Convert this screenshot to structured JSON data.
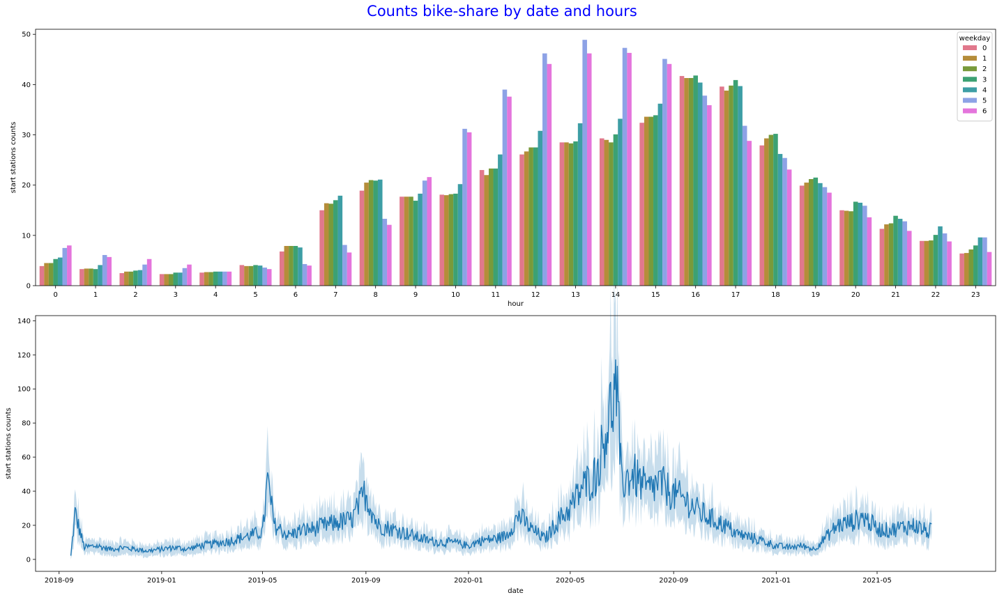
{
  "suptitle": "Counts bike-share by date and hours",
  "chart_data": [
    {
      "type": "bar",
      "title": "",
      "xlabel": "hour",
      "ylabel": "start stations counts",
      "ylim": [
        0,
        51
      ],
      "yticks": [
        0,
        10,
        20,
        30,
        40,
        50
      ],
      "grid": false,
      "legend": {
        "title": "weekday",
        "placement": "top-right"
      },
      "categories": [
        "0",
        "1",
        "2",
        "3",
        "4",
        "5",
        "6",
        "7",
        "8",
        "9",
        "10",
        "11",
        "12",
        "13",
        "14",
        "15",
        "16",
        "17",
        "18",
        "19",
        "20",
        "21",
        "22",
        "23"
      ],
      "series": [
        {
          "name": "0",
          "color": "#e1788c",
          "values": [
            3.9,
            3.3,
            2.5,
            2.3,
            2.6,
            4.1,
            6.8,
            15.0,
            18.9,
            17.7,
            18.1,
            23.0,
            26.1,
            28.5,
            29.3,
            32.4,
            41.7,
            39.6,
            27.9,
            19.9,
            15.0,
            11.3,
            8.9,
            6.4
          ]
        },
        {
          "name": "1",
          "color": "#b58d3a",
          "values": [
            4.5,
            3.4,
            2.8,
            2.3,
            2.7,
            3.9,
            7.9,
            16.4,
            20.5,
            17.7,
            18.0,
            22.0,
            26.7,
            28.5,
            29.0,
            33.6,
            41.3,
            38.8,
            29.3,
            20.5,
            14.9,
            12.2,
            8.9,
            6.5
          ]
        },
        {
          "name": "2",
          "color": "#789a3b",
          "values": [
            4.5,
            3.4,
            2.8,
            2.3,
            2.7,
            3.9,
            7.9,
            16.3,
            21.0,
            17.7,
            18.2,
            23.3,
            27.5,
            28.3,
            28.5,
            33.6,
            41.3,
            39.8,
            30.0,
            21.2,
            14.8,
            12.4,
            9.0,
            7.2
          ]
        },
        {
          "name": "3",
          "color": "#3ca173",
          "values": [
            5.3,
            3.3,
            3.0,
            2.6,
            2.8,
            4.1,
            7.9,
            17.0,
            20.9,
            16.9,
            18.3,
            23.3,
            27.5,
            28.7,
            30.1,
            33.9,
            41.8,
            40.9,
            30.2,
            21.5,
            16.7,
            13.9,
            10.1,
            8.0
          ]
        },
        {
          "name": "4",
          "color": "#3d9ea5",
          "values": [
            5.6,
            4.1,
            3.1,
            2.6,
            2.8,
            4.0,
            7.6,
            17.9,
            21.1,
            18.3,
            20.2,
            26.1,
            30.8,
            32.3,
            33.2,
            36.2,
            40.4,
            39.7,
            26.2,
            20.4,
            16.5,
            13.3,
            11.8,
            9.6
          ]
        },
        {
          "name": "5",
          "color": "#8da2e6",
          "values": [
            7.5,
            6.1,
            4.2,
            3.5,
            2.8,
            3.6,
            4.3,
            8.1,
            13.3,
            20.9,
            31.2,
            39.0,
            46.2,
            48.9,
            47.3,
            45.1,
            37.8,
            31.8,
            25.4,
            19.6,
            15.9,
            12.8,
            10.4,
            9.6
          ]
        },
        {
          "name": "6",
          "color": "#e475dc",
          "values": [
            8.0,
            5.7,
            5.3,
            4.2,
            2.8,
            3.3,
            4.0,
            6.6,
            12.1,
            21.6,
            30.5,
            37.6,
            44.1,
            46.2,
            46.3,
            44.1,
            35.9,
            28.8,
            23.1,
            18.5,
            13.6,
            10.9,
            8.8,
            6.7
          ]
        }
      ]
    },
    {
      "type": "line",
      "title": "",
      "xlabel": "date",
      "ylabel": "start stations counts",
      "ylim": [
        -7,
        143
      ],
      "yticks": [
        0,
        20,
        40,
        60,
        80,
        100,
        120,
        140
      ],
      "xlim": [
        "2018-08-04",
        "2021-09-19"
      ],
      "xticks": [
        "2018-09",
        "2019-01",
        "2019-05",
        "2019-09",
        "2020-01",
        "2020-05",
        "2020-09",
        "2021-01",
        "2021-05"
      ],
      "grid": false,
      "color": "#1f77b4",
      "band": "confidence interval",
      "x": [
        "2018-09-15",
        "2018-09-20",
        "2018-10-01",
        "2018-10-15",
        "2018-11-01",
        "2018-11-15",
        "2018-12-01",
        "2018-12-15",
        "2019-01-01",
        "2019-01-15",
        "2019-02-01",
        "2019-02-15",
        "2019-03-01",
        "2019-03-15",
        "2019-04-01",
        "2019-04-15",
        "2019-05-01",
        "2019-05-07",
        "2019-05-15",
        "2019-06-01",
        "2019-06-15",
        "2019-07-01",
        "2019-07-15",
        "2019-08-01",
        "2019-08-15",
        "2019-08-31",
        "2019-09-15",
        "2019-10-01",
        "2019-10-15",
        "2019-11-01",
        "2019-11-15",
        "2019-12-01",
        "2019-12-15",
        "2020-01-01",
        "2020-01-15",
        "2020-02-01",
        "2020-02-15",
        "2020-03-01",
        "2020-03-15",
        "2020-04-01",
        "2020-04-15",
        "2020-05-01",
        "2020-05-15",
        "2020-06-01",
        "2020-06-15",
        "2020-06-25",
        "2020-07-01",
        "2020-07-15",
        "2020-08-01",
        "2020-08-15",
        "2020-09-01",
        "2020-09-15",
        "2020-10-01",
        "2020-10-15",
        "2020-11-01",
        "2020-11-15",
        "2020-12-01",
        "2020-12-15",
        "2021-01-01",
        "2021-01-15",
        "2021-02-01",
        "2021-02-15",
        "2021-03-01",
        "2021-03-15",
        "2021-04-01",
        "2021-04-15",
        "2021-05-01",
        "2021-05-15",
        "2021-06-01",
        "2021-06-15",
        "2021-07-01",
        "2021-07-05"
      ],
      "y": [
        2,
        27,
        7,
        8,
        6,
        7,
        6,
        5,
        6,
        7,
        6,
        8,
        9,
        10,
        12,
        14,
        16,
        46,
        20,
        14,
        17,
        18,
        20,
        22,
        23,
        39,
        20,
        18,
        16,
        13,
        11,
        10,
        10,
        8,
        11,
        12,
        14,
        26,
        18,
        12,
        22,
        30,
        42,
        50,
        82,
        101,
        45,
        50,
        40,
        45,
        38,
        35,
        28,
        24,
        20,
        15,
        13,
        11,
        8,
        7,
        8,
        6,
        13,
        20,
        22,
        25,
        18,
        17,
        19,
        20,
        16,
        18
      ]
    }
  ]
}
